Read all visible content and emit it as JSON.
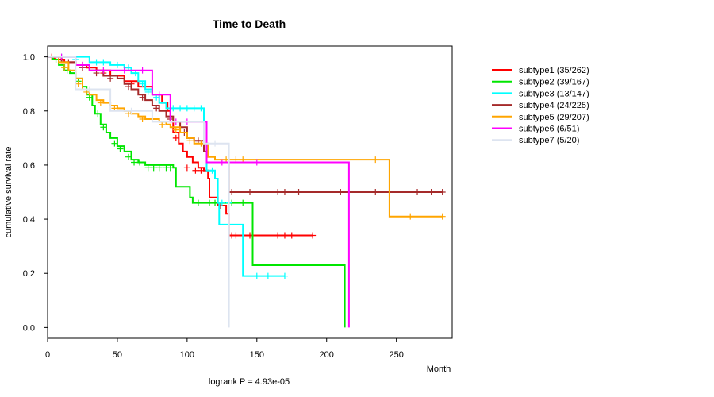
{
  "chart_data": {
    "type": "line",
    "subtype": "kaplan-meier",
    "title": "Time to Death",
    "xlabel": "Month",
    "ylabel": "cumulative survival rate",
    "footnote": "logrank P = 4.93e-05",
    "xlim": [
      0,
      290
    ],
    "ylim": [
      -0.04,
      1.04
    ],
    "xticks": [
      0,
      50,
      100,
      150,
      200,
      250
    ],
    "yticks": [
      0.0,
      0.2,
      0.4,
      0.6,
      0.8,
      1.0
    ],
    "ytick_labels": [
      "0.0",
      "0.2",
      "0.4",
      "0.6",
      "0.8",
      "1.0"
    ],
    "grid": false,
    "legend_position": "top-right",
    "series": [
      {
        "name": "subtype1 (35/262)",
        "color": "#ff0000",
        "steps": [
          [
            0,
            1.0
          ],
          [
            5,
            0.99
          ],
          [
            12,
            0.98
          ],
          [
            20,
            0.97
          ],
          [
            28,
            0.96
          ],
          [
            35,
            0.95
          ],
          [
            45,
            0.93
          ],
          [
            55,
            0.91
          ],
          [
            65,
            0.89
          ],
          [
            75,
            0.86
          ],
          [
            82,
            0.83
          ],
          [
            86,
            0.8
          ],
          [
            88,
            0.76
          ],
          [
            90,
            0.72
          ],
          [
            94,
            0.68
          ],
          [
            97,
            0.65
          ],
          [
            100,
            0.63
          ],
          [
            104,
            0.61
          ],
          [
            108,
            0.59
          ],
          [
            112,
            0.58
          ],
          [
            115,
            0.55
          ],
          [
            116,
            0.48
          ],
          [
            122,
            0.45
          ],
          [
            128,
            0.42
          ],
          [
            130,
            0.34
          ],
          [
            190,
            0.34
          ]
        ],
        "censored": [
          [
            3,
            1.0
          ],
          [
            8,
            0.99
          ],
          [
            25,
            0.97
          ],
          [
            40,
            0.94
          ],
          [
            60,
            0.9
          ],
          [
            92,
            0.7
          ],
          [
            100,
            0.59
          ],
          [
            106,
            0.58
          ],
          [
            110,
            0.58
          ],
          [
            124,
            0.45
          ],
          [
            132,
            0.34
          ],
          [
            135,
            0.34
          ],
          [
            145,
            0.34
          ],
          [
            165,
            0.34
          ],
          [
            170,
            0.34
          ],
          [
            175,
            0.34
          ],
          [
            190,
            0.34
          ]
        ]
      },
      {
        "name": "subtype2 (39/167)",
        "color": "#00e600",
        "steps": [
          [
            0,
            1.0
          ],
          [
            4,
            0.99
          ],
          [
            8,
            0.97
          ],
          [
            12,
            0.95
          ],
          [
            16,
            0.94
          ],
          [
            20,
            0.92
          ],
          [
            25,
            0.89
          ],
          [
            28,
            0.86
          ],
          [
            32,
            0.82
          ],
          [
            34,
            0.79
          ],
          [
            38,
            0.75
          ],
          [
            42,
            0.72
          ],
          [
            45,
            0.7
          ],
          [
            50,
            0.67
          ],
          [
            55,
            0.65
          ],
          [
            60,
            0.62
          ],
          [
            65,
            0.61
          ],
          [
            70,
            0.6
          ],
          [
            90,
            0.59
          ],
          [
            92,
            0.52
          ],
          [
            102,
            0.48
          ],
          [
            104,
            0.46
          ],
          [
            122,
            0.46
          ],
          [
            124,
            0.46
          ],
          [
            147,
            0.23
          ],
          [
            213,
            0.23
          ],
          [
            213,
            0.0
          ]
        ],
        "censored": [
          [
            6,
            0.99
          ],
          [
            14,
            0.95
          ],
          [
            22,
            0.91
          ],
          [
            30,
            0.85
          ],
          [
            36,
            0.79
          ],
          [
            40,
            0.74
          ],
          [
            48,
            0.68
          ],
          [
            52,
            0.66
          ],
          [
            58,
            0.63
          ],
          [
            62,
            0.61
          ],
          [
            66,
            0.61
          ],
          [
            72,
            0.59
          ],
          [
            76,
            0.59
          ],
          [
            80,
            0.59
          ],
          [
            85,
            0.59
          ],
          [
            88,
            0.59
          ],
          [
            108,
            0.46
          ],
          [
            116,
            0.46
          ],
          [
            120,
            0.46
          ],
          [
            132,
            0.46
          ],
          [
            140,
            0.46
          ]
        ]
      },
      {
        "name": "subtype3 (13/147)",
        "color": "#00ffff",
        "steps": [
          [
            0,
            1.0
          ],
          [
            30,
            0.98
          ],
          [
            45,
            0.97
          ],
          [
            55,
            0.96
          ],
          [
            60,
            0.94
          ],
          [
            65,
            0.91
          ],
          [
            70,
            0.88
          ],
          [
            75,
            0.86
          ],
          [
            80,
            0.83
          ],
          [
            85,
            0.81
          ],
          [
            112,
            0.76
          ],
          [
            114,
            0.58
          ],
          [
            120,
            0.55
          ],
          [
            122,
            0.46
          ],
          [
            123,
            0.38
          ],
          [
            140,
            0.38
          ],
          [
            140,
            0.19
          ],
          [
            170,
            0.19
          ]
        ],
        "censored": [
          [
            10,
            1.0
          ],
          [
            20,
            0.99
          ],
          [
            35,
            0.98
          ],
          [
            40,
            0.98
          ],
          [
            50,
            0.97
          ],
          [
            58,
            0.96
          ],
          [
            63,
            0.94
          ],
          [
            68,
            0.9
          ],
          [
            72,
            0.87
          ],
          [
            78,
            0.85
          ],
          [
            90,
            0.81
          ],
          [
            95,
            0.81
          ],
          [
            100,
            0.81
          ],
          [
            105,
            0.81
          ],
          [
            110,
            0.81
          ],
          [
            118,
            0.58
          ],
          [
            125,
            0.46
          ],
          [
            130,
            0.46
          ],
          [
            150,
            0.19
          ],
          [
            158,
            0.19
          ],
          [
            170,
            0.19
          ]
        ]
      },
      {
        "name": "subtype4 (24/225)",
        "color": "#a52a2a",
        "steps": [
          [
            0,
            1.0
          ],
          [
            10,
            0.98
          ],
          [
            20,
            0.97
          ],
          [
            30,
            0.95
          ],
          [
            40,
            0.93
          ],
          [
            50,
            0.92
          ],
          [
            55,
            0.9
          ],
          [
            60,
            0.88
          ],
          [
            65,
            0.86
          ],
          [
            70,
            0.84
          ],
          [
            75,
            0.82
          ],
          [
            80,
            0.8
          ],
          [
            85,
            0.78
          ],
          [
            90,
            0.76
          ],
          [
            95,
            0.74
          ],
          [
            100,
            0.7
          ],
          [
            105,
            0.69
          ],
          [
            112,
            0.65
          ],
          [
            114,
            0.61
          ],
          [
            130,
            0.5
          ],
          [
            283,
            0.5
          ]
        ],
        "censored": [
          [
            15,
            0.98
          ],
          [
            25,
            0.96
          ],
          [
            35,
            0.94
          ],
          [
            45,
            0.92
          ],
          [
            58,
            0.89
          ],
          [
            68,
            0.85
          ],
          [
            78,
            0.81
          ],
          [
            88,
            0.77
          ],
          [
            98,
            0.72
          ],
          [
            108,
            0.69
          ],
          [
            132,
            0.5
          ],
          [
            145,
            0.5
          ],
          [
            165,
            0.5
          ],
          [
            170,
            0.5
          ],
          [
            180,
            0.5
          ],
          [
            210,
            0.5
          ],
          [
            235,
            0.5
          ],
          [
            265,
            0.5
          ],
          [
            275,
            0.5
          ],
          [
            283,
            0.5
          ]
        ]
      },
      {
        "name": "subtype5 (29/207)",
        "color": "#ffa500",
        "steps": [
          [
            0,
            1.0
          ],
          [
            8,
            0.98
          ],
          [
            15,
            0.95
          ],
          [
            20,
            0.92
          ],
          [
            25,
            0.88
          ],
          [
            30,
            0.86
          ],
          [
            35,
            0.84
          ],
          [
            40,
            0.83
          ],
          [
            45,
            0.82
          ],
          [
            50,
            0.81
          ],
          [
            55,
            0.8
          ],
          [
            60,
            0.79
          ],
          [
            65,
            0.78
          ],
          [
            70,
            0.77
          ],
          [
            80,
            0.76
          ],
          [
            85,
            0.75
          ],
          [
            88,
            0.74
          ],
          [
            95,
            0.72
          ],
          [
            100,
            0.7
          ],
          [
            105,
            0.68
          ],
          [
            115,
            0.63
          ],
          [
            120,
            0.62
          ],
          [
            245,
            0.62
          ],
          [
            245,
            0.41
          ],
          [
            283,
            0.41
          ]
        ],
        "censored": [
          [
            12,
            0.96
          ],
          [
            22,
            0.9
          ],
          [
            28,
            0.87
          ],
          [
            38,
            0.83
          ],
          [
            48,
            0.81
          ],
          [
            58,
            0.79
          ],
          [
            68,
            0.77
          ],
          [
            75,
            0.77
          ],
          [
            82,
            0.75
          ],
          [
            92,
            0.73
          ],
          [
            102,
            0.69
          ],
          [
            110,
            0.68
          ],
          [
            128,
            0.62
          ],
          [
            135,
            0.62
          ],
          [
            140,
            0.62
          ],
          [
            235,
            0.62
          ],
          [
            260,
            0.41
          ],
          [
            283,
            0.41
          ]
        ]
      },
      {
        "name": "subtype6 (6/51)",
        "color": "#ff00ff",
        "steps": [
          [
            0,
            1.0
          ],
          [
            20,
            0.97
          ],
          [
            30,
            0.95
          ],
          [
            75,
            0.95
          ],
          [
            75,
            0.86
          ],
          [
            88,
            0.86
          ],
          [
            88,
            0.76
          ],
          [
            114,
            0.76
          ],
          [
            114,
            0.61
          ],
          [
            216,
            0.61
          ],
          [
            216,
            0.0
          ]
        ],
        "censored": [
          [
            10,
            1.0
          ],
          [
            25,
            0.97
          ],
          [
            40,
            0.95
          ],
          [
            55,
            0.95
          ],
          [
            68,
            0.95
          ],
          [
            80,
            0.86
          ],
          [
            92,
            0.76
          ],
          [
            100,
            0.76
          ],
          [
            125,
            0.61
          ],
          [
            150,
            0.61
          ]
        ]
      },
      {
        "name": "subtype7 (5/20)",
        "color": "#dde4f0",
        "steps": [
          [
            0,
            1.0
          ],
          [
            20,
            0.88
          ],
          [
            45,
            0.8
          ],
          [
            75,
            0.8
          ],
          [
            75,
            0.76
          ],
          [
            112,
            0.76
          ],
          [
            112,
            0.68
          ],
          [
            130,
            0.68
          ],
          [
            130,
            0.0
          ]
        ],
        "censored": [
          [
            30,
            0.88
          ],
          [
            60,
            0.8
          ],
          [
            120,
            0.68
          ]
        ]
      }
    ]
  }
}
